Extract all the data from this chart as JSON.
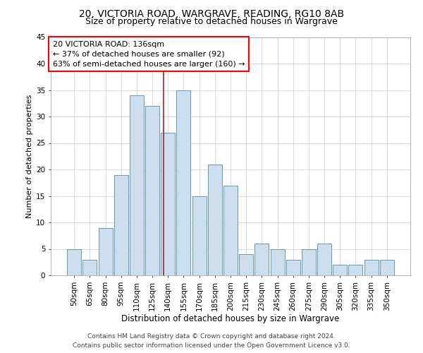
{
  "title1": "20, VICTORIA ROAD, WARGRAVE, READING, RG10 8AB",
  "title2": "Size of property relative to detached houses in Wargrave",
  "xlabel": "Distribution of detached houses by size in Wargrave",
  "ylabel": "Number of detached properties",
  "categories": [
    "50sqm",
    "65sqm",
    "80sqm",
    "95sqm",
    "110sqm",
    "125sqm",
    "140sqm",
    "155sqm",
    "170sqm",
    "185sqm",
    "200sqm",
    "215sqm",
    "230sqm",
    "245sqm",
    "260sqm",
    "275sqm",
    "290sqm",
    "305sqm",
    "320sqm",
    "335sqm",
    "350sqm"
  ],
  "values": [
    5,
    3,
    9,
    19,
    34,
    32,
    27,
    35,
    15,
    21,
    17,
    4,
    6,
    5,
    3,
    5,
    6,
    2,
    2,
    3,
    3
  ],
  "bar_color": "#ccdded",
  "bar_edge_color": "#6699bb",
  "grid_color": "#cccccc",
  "vline_color": "#aa2222",
  "annotation_text_line1": "20 VICTORIA ROAD: 136sqm",
  "annotation_text_line2": "← 37% of detached houses are smaller (92)",
  "annotation_text_line3": "63% of semi-detached houses are larger (160) →",
  "footer1": "Contains HM Land Registry data © Crown copyright and database right 2024.",
  "footer2": "Contains public sector information licensed under the Open Government Licence v3.0.",
  "ylim": [
    0,
    45
  ],
  "yticks": [
    0,
    5,
    10,
    15,
    20,
    25,
    30,
    35,
    40,
    45
  ],
  "title1_fontsize": 10,
  "title2_fontsize": 9,
  "xlabel_fontsize": 8.5,
  "ylabel_fontsize": 8,
  "tick_fontsize": 7.5,
  "annotation_fontsize": 8,
  "footer_fontsize": 6.5
}
